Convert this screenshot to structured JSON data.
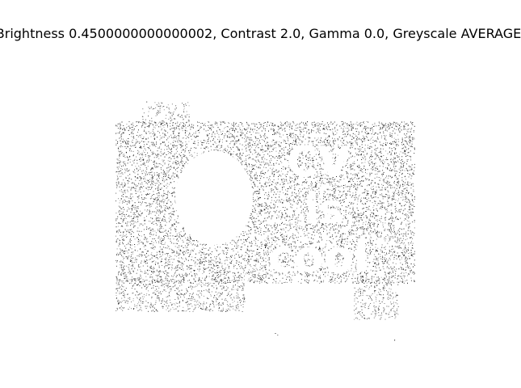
{
  "figure": {
    "title": "Brightness 0.4500000000000002, Contrast 2.0, Gamma 0.0, Greyscale AVERAGE",
    "image_description_colors": {
      "background": "#ffffff",
      "speckle": "#000000"
    },
    "embedded_text_in_image": [
      "CV",
      "is",
      "cool"
    ]
  }
}
